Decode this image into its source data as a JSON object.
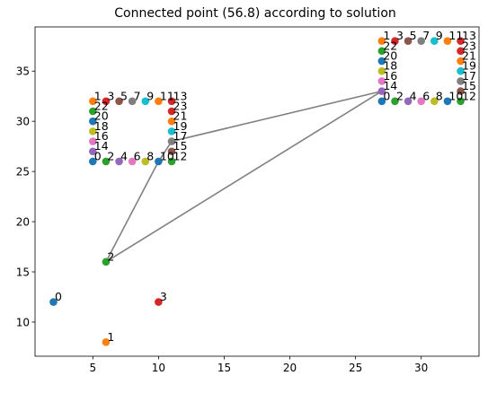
{
  "chart_data": {
    "type": "scatter",
    "title": "Connected point (56.8) according to solution",
    "xlabel": "",
    "ylabel": "",
    "xlim": [
      0.6,
      34.4
    ],
    "ylim": [
      6.6,
      39.4
    ],
    "xticks": [
      5,
      10,
      15,
      20,
      25,
      30
    ],
    "yticks": [
      10,
      15,
      20,
      25,
      30,
      35
    ],
    "grid": false,
    "palette": [
      "#1f77b4",
      "#ff7f0e",
      "#2ca02c",
      "#d62728",
      "#9467bd",
      "#8c564b",
      "#e377c2",
      "#7f7f7f",
      "#bcbd22",
      "#17becf"
    ],
    "line_color": "#808080",
    "groups": [
      {
        "points": [
          {
            "x": 2,
            "y": 12,
            "label": "0"
          },
          {
            "x": 6,
            "y": 8,
            "label": "1"
          },
          {
            "x": 6,
            "y": 16,
            "label": "2"
          },
          {
            "x": 10,
            "y": 12,
            "label": "3"
          }
        ]
      },
      {
        "points": [
          {
            "x": 5,
            "y": 26,
            "label": "0"
          },
          {
            "x": 5,
            "y": 32,
            "label": "1"
          },
          {
            "x": 6,
            "y": 26,
            "label": "2"
          },
          {
            "x": 6,
            "y": 32,
            "label": "3"
          },
          {
            "x": 7,
            "y": 26,
            "label": "4"
          },
          {
            "x": 7,
            "y": 32,
            "label": "5"
          },
          {
            "x": 8,
            "y": 26,
            "label": "6"
          },
          {
            "x": 8,
            "y": 32,
            "label": "7"
          },
          {
            "x": 9,
            "y": 26,
            "label": "8"
          },
          {
            "x": 9,
            "y": 32,
            "label": "9"
          },
          {
            "x": 10,
            "y": 26,
            "label": "10"
          },
          {
            "x": 10,
            "y": 32,
            "label": "11"
          },
          {
            "x": 11,
            "y": 26,
            "label": "12"
          },
          {
            "x": 11,
            "y": 32,
            "label": "13"
          },
          {
            "x": 5,
            "y": 27,
            "label": "14"
          },
          {
            "x": 11,
            "y": 27,
            "label": "15"
          },
          {
            "x": 5,
            "y": 28,
            "label": "16"
          },
          {
            "x": 11,
            "y": 28,
            "label": "17"
          },
          {
            "x": 5,
            "y": 29,
            "label": "18"
          },
          {
            "x": 11,
            "y": 29,
            "label": "19"
          },
          {
            "x": 5,
            "y": 30,
            "label": "20"
          },
          {
            "x": 11,
            "y": 30,
            "label": "21"
          },
          {
            "x": 5,
            "y": 31,
            "label": "22"
          },
          {
            "x": 11,
            "y": 31,
            "label": "23"
          }
        ]
      },
      {
        "points": [
          {
            "x": 27,
            "y": 32,
            "label": "0"
          },
          {
            "x": 27,
            "y": 38,
            "label": "1"
          },
          {
            "x": 28,
            "y": 32,
            "label": "2"
          },
          {
            "x": 28,
            "y": 38,
            "label": "3"
          },
          {
            "x": 29,
            "y": 32,
            "label": "4"
          },
          {
            "x": 29,
            "y": 38,
            "label": "5"
          },
          {
            "x": 30,
            "y": 32,
            "label": "6"
          },
          {
            "x": 30,
            "y": 38,
            "label": "7"
          },
          {
            "x": 31,
            "y": 32,
            "label": "8"
          },
          {
            "x": 31,
            "y": 38,
            "label": "9"
          },
          {
            "x": 32,
            "y": 32,
            "label": "10"
          },
          {
            "x": 32,
            "y": 38,
            "label": "11"
          },
          {
            "x": 33,
            "y": 32,
            "label": "12"
          },
          {
            "x": 33,
            "y": 38,
            "label": "13"
          },
          {
            "x": 27,
            "y": 33,
            "label": "14"
          },
          {
            "x": 33,
            "y": 33,
            "label": "15"
          },
          {
            "x": 27,
            "y": 34,
            "label": "16"
          },
          {
            "x": 33,
            "y": 34,
            "label": "17"
          },
          {
            "x": 27,
            "y": 35,
            "label": "18"
          },
          {
            "x": 33,
            "y": 35,
            "label": "19"
          },
          {
            "x": 27,
            "y": 36,
            "label": "20"
          },
          {
            "x": 33,
            "y": 36,
            "label": "21"
          },
          {
            "x": 27,
            "y": 37,
            "label": "22"
          },
          {
            "x": 33,
            "y": 37,
            "label": "23"
          }
        ]
      }
    ],
    "connections": [
      {
        "from": [
          6,
          16
        ],
        "to": [
          10,
          26
        ]
      },
      {
        "from": [
          10,
          26
        ],
        "to": [
          11,
          28
        ]
      },
      {
        "from": [
          11,
          28
        ],
        "to": [
          27,
          33
        ]
      },
      {
        "from": [
          27,
          33
        ],
        "to": [
          6,
          16
        ]
      }
    ]
  }
}
